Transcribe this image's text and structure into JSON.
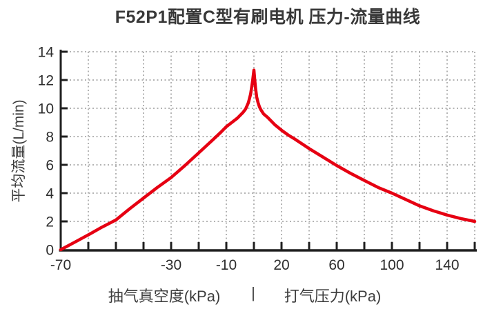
{
  "title": "F52P1配置C型有刷电机 压力-流量曲线",
  "chart_data": {
    "type": "line",
    "title": "F52P1配置C型有刷电机 压力-流量曲线",
    "ylabel": "平均流量(L/min)",
    "xlabel_left": "抽气真空度(kPa)",
    "xlabel_separator": "|",
    "xlabel_right": "打气压力(kPa)",
    "grid": "dotted",
    "legend": "none",
    "ylim": [
      0,
      14
    ],
    "y_ticks": [
      0,
      2,
      4,
      6,
      8,
      10,
      12,
      14
    ],
    "x_axis": {
      "dual_scale": true,
      "vacuum_range": [
        -70,
        0
      ],
      "vacuum_tick_step": 10,
      "pressure_range": [
        0,
        160
      ],
      "pressure_tick_step": 20,
      "labeled_ticks": [
        -70,
        -30,
        -10,
        20,
        60,
        100,
        140
      ]
    },
    "series": [
      {
        "name": "压力-流量曲线",
        "color": "#e60012",
        "peak": {
          "x": 0,
          "y": 12.7
        },
        "points": [
          [
            -70,
            0
          ],
          [
            -65,
            0.52
          ],
          [
            -60,
            1.05
          ],
          [
            -55,
            1.6
          ],
          [
            -50,
            2.1
          ],
          [
            -45,
            2.9
          ],
          [
            -40,
            3.65
          ],
          [
            -35,
            4.4
          ],
          [
            -30,
            5.1
          ],
          [
            -25,
            5.95
          ],
          [
            -20,
            6.85
          ],
          [
            -15,
            7.75
          ],
          [
            -12,
            8.3
          ],
          [
            -10,
            8.7
          ],
          [
            -8,
            9.0
          ],
          [
            -6,
            9.3
          ],
          [
            -4,
            9.7
          ],
          [
            -3,
            9.95
          ],
          [
            -2,
            10.4
          ],
          [
            -1.2,
            11.0
          ],
          [
            -0.5,
            11.9
          ],
          [
            0,
            12.7
          ],
          [
            0.6,
            12.0
          ],
          [
            1.2,
            11.4
          ],
          [
            2,
            10.8
          ],
          [
            3,
            10.4
          ],
          [
            4,
            10.1
          ],
          [
            5,
            9.9
          ],
          [
            7,
            9.6
          ],
          [
            10,
            9.35
          ],
          [
            15,
            8.85
          ],
          [
            20,
            8.45
          ],
          [
            25,
            8.1
          ],
          [
            30,
            7.8
          ],
          [
            40,
            7.15
          ],
          [
            50,
            6.55
          ],
          [
            60,
            5.95
          ],
          [
            70,
            5.4
          ],
          [
            80,
            4.9
          ],
          [
            90,
            4.4
          ],
          [
            100,
            4.0
          ],
          [
            110,
            3.55
          ],
          [
            120,
            3.1
          ],
          [
            130,
            2.75
          ],
          [
            140,
            2.45
          ],
          [
            150,
            2.2
          ],
          [
            160,
            2.0
          ]
        ]
      }
    ],
    "colors": {
      "curve": "#e60012",
      "axis": "#1f1f1f",
      "grid": "#b3b3b3",
      "text": "#3d3d3d",
      "tick_text": "#2e2e2e",
      "background": "#ffffff"
    }
  }
}
